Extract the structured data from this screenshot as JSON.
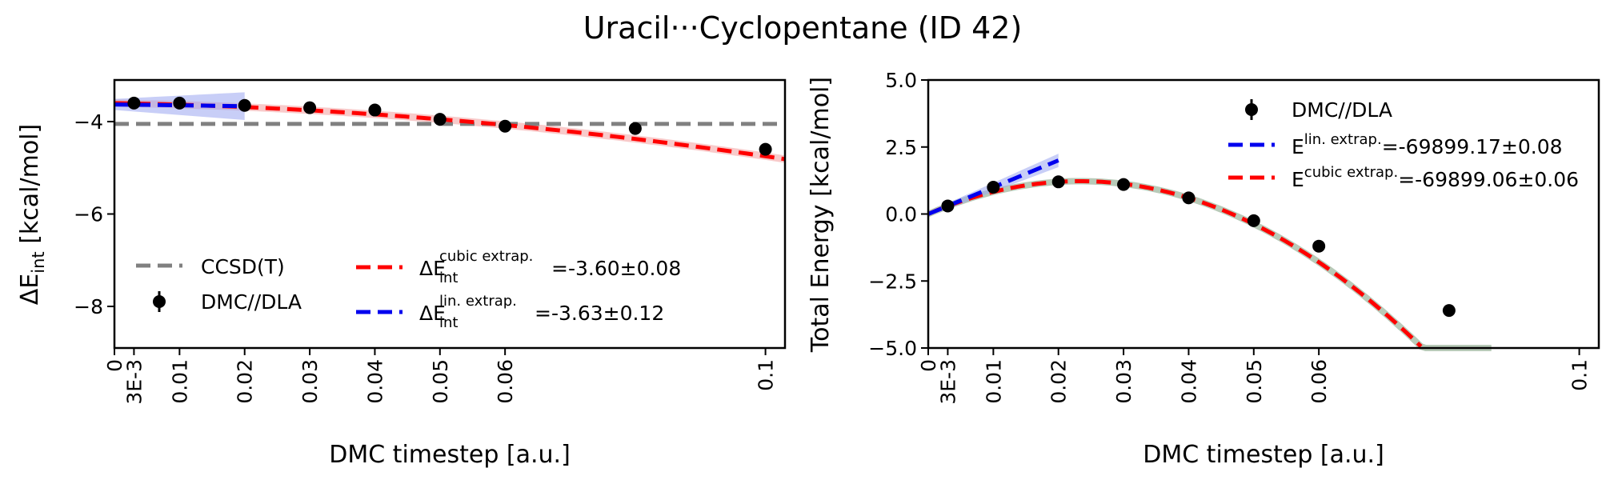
{
  "figure": {
    "title": "Uracil···Cyclopentane (ID 42)"
  },
  "chart_data": [
    {
      "type": "line",
      "panel": "left",
      "xlabel": "DMC timestep [a.u.]",
      "ylabel_main": "ΔE",
      "ylabel_sub": "int",
      "ylabel_unit": " [kcal/mol]",
      "xlim": [
        0,
        0.103
      ],
      "ylim": [
        -8.9,
        -3.1
      ],
      "xticks": [
        0,
        0.003,
        0.01,
        0.02,
        0.03,
        0.04,
        0.05,
        0.06,
        0.1
      ],
      "xticklabels": [
        "0",
        "3E-3",
        "0.01",
        "0.02",
        "0.03",
        "0.04",
        "0.05",
        "0.06",
        "0.1"
      ],
      "yticks": [
        -4,
        -6,
        -8
      ],
      "yticklabels": [
        "−4",
        "−6",
        "−8"
      ],
      "reference": {
        "name": "CCSD(T)",
        "value": -4.05,
        "color": "#808080"
      },
      "points": {
        "name": "DMC//DLA",
        "x": [
          0.003,
          0.01,
          0.02,
          0.03,
          0.04,
          0.05,
          0.06,
          0.08,
          0.1
        ],
        "y": [
          -3.6,
          -3.6,
          -3.65,
          -3.7,
          -3.75,
          -3.95,
          -4.1,
          -4.15,
          -4.6
        ]
      },
      "cubic_fit": {
        "color": "#ff0000",
        "band_color": "#f4a6a6",
        "coeffs": [
          -3.6,
          -2.5,
          -90,
          0
        ],
        "x_range": [
          0,
          0.103
        ],
        "band_halfwidth": 0.08
      },
      "linear_fit": {
        "color": "#0000ee",
        "band_color": "#9aa6f0",
        "coeffs": [
          -3.63,
          -1.8
        ],
        "x_range": [
          0,
          0.02
        ],
        "band_halfwidth": [
          0.12,
          0.3
        ]
      },
      "legend": {
        "ccsd_label": "CCSD(T)",
        "dmc_label": "DMC//DLA",
        "cubic_main": "ΔE",
        "cubic_sub": "int",
        "cubic_sup": "cubic extrap.",
        "cubic_value": "=-3.60±0.08",
        "lin_main": "ΔE",
        "lin_sub": "int",
        "lin_sup": "lin. extrap.",
        "lin_value": "=-3.63±0.12"
      }
    },
    {
      "type": "line",
      "panel": "right",
      "xlabel": "DMC timestep [a.u.]",
      "ylabel": "Total Energy [kcal/mol]",
      "xlim": [
        0,
        0.103
      ],
      "ylim": [
        -5,
        5
      ],
      "xticks": [
        0,
        0.003,
        0.01,
        0.02,
        0.03,
        0.04,
        0.05,
        0.06,
        0.1
      ],
      "xticklabels": [
        "0",
        "3E-3",
        "0.01",
        "0.02",
        "0.03",
        "0.04",
        "0.05",
        "0.06",
        "0.1"
      ],
      "yticks": [
        5,
        2.5,
        0,
        -2.5,
        -5
      ],
      "yticklabels": [
        "5.0",
        "2.5",
        "0.0",
        "−2.5",
        "−5.0"
      ],
      "points": {
        "name": "DMC//DLA",
        "x": [
          0.003,
          0.01,
          0.02,
          0.03,
          0.04,
          0.05,
          0.06,
          0.08
        ],
        "y": [
          0.3,
          1.0,
          1.2,
          1.1,
          0.6,
          -0.25,
          -1.2,
          -3.6
        ]
      },
      "cubic_fit": {
        "color": "#ff0000",
        "band_color": "#b0c4b0",
        "coeffs": [
          0,
          105,
          -2250,
          0
        ],
        "x_range": [
          0,
          0.0865
        ]
      },
      "linear_fit": {
        "color": "#0000ee",
        "band_color": "#9aa6f0",
        "coeffs": [
          0,
          100
        ],
        "x_range": [
          0,
          0.02
        ],
        "band_halfwidth": [
          0.08,
          0.25
        ]
      },
      "legend": {
        "dmc_label": "DMC//DLA",
        "lin_main": "E",
        "lin_sup": "lin. extrap.",
        "lin_value": "=-69899.17±0.08",
        "cubic_main": "E",
        "cubic_sup": "cubic extrap.",
        "cubic_value": "=-69899.06±0.06"
      }
    }
  ]
}
